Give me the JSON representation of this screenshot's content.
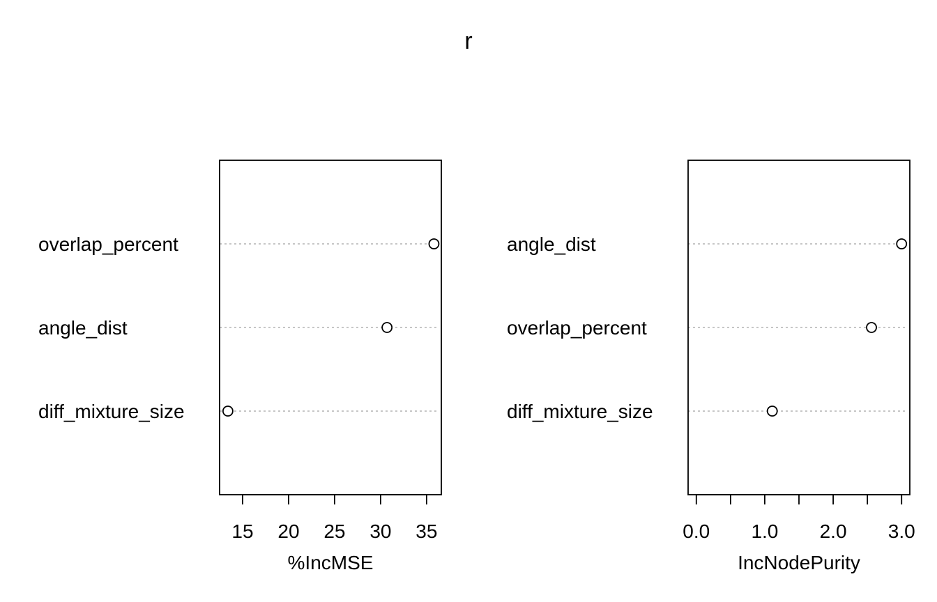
{
  "title": "r",
  "chart_data": [
    {
      "type": "scatter",
      "subtype": "dotchart",
      "title": "",
      "xlabel": "%IncMSE",
      "ylabel": "",
      "categories": [
        "overlap_percent",
        "angle_dist",
        "diff_mixture_size"
      ],
      "values": [
        35.8,
        30.7,
        13.4
      ],
      "xlim": [
        12.5,
        36.6
      ],
      "xticks": [
        15,
        20,
        25,
        30,
        35
      ],
      "xtick_labels": [
        "15",
        "20",
        "25",
        "30",
        "35"
      ],
      "grid": "horizontal dotted guides",
      "legend": "none"
    },
    {
      "type": "scatter",
      "subtype": "dotchart",
      "title": "",
      "xlabel": "IncNodePurity",
      "ylabel": "",
      "categories": [
        "angle_dist",
        "overlap_percent",
        "diff_mixture_size"
      ],
      "values": [
        3.0,
        2.56,
        1.11
      ],
      "xlim": [
        -0.12,
        3.12
      ],
      "xticks": [
        0.0,
        0.5,
        1.0,
        1.5,
        2.0,
        2.5,
        3.0
      ],
      "xtick_labels": [
        "0.0",
        "",
        "1.0",
        "",
        "2.0",
        "",
        "3.0"
      ],
      "grid": "horizontal dotted guides",
      "legend": "none"
    }
  ]
}
